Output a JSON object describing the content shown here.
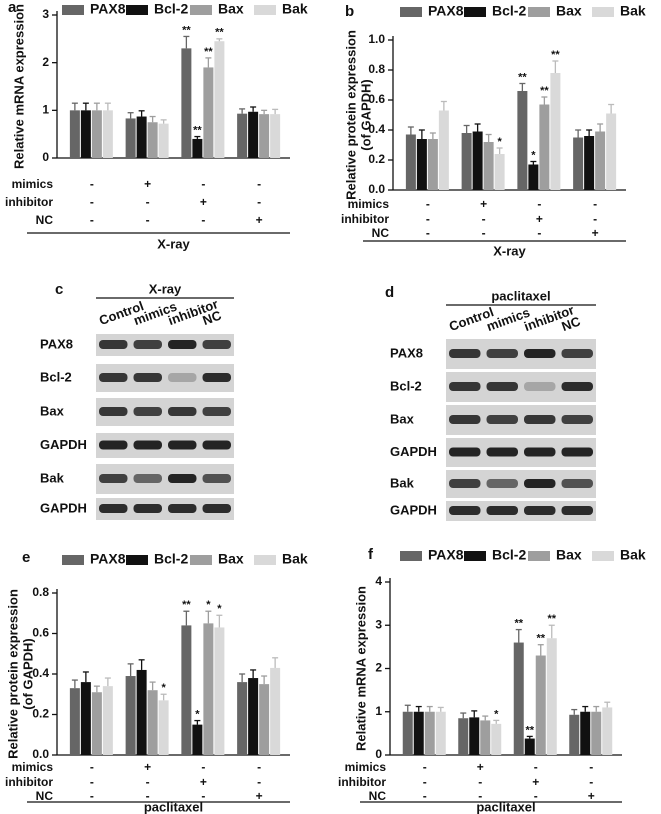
{
  "chart_data": [
    {
      "type": "bar",
      "panel": "a",
      "ylabel": [
        "Relative mRNA expression"
      ],
      "ylim": [
        0,
        3
      ],
      "yticks": [
        0,
        1,
        2,
        3
      ],
      "series": [
        {
          "name": "PAX8",
          "color": "#666666",
          "values": [
            1.0,
            0.83,
            2.3,
            0.93
          ],
          "errors": [
            0.15,
            0.12,
            0.25,
            0.1
          ],
          "stars": [
            null,
            null,
            "**",
            null
          ]
        },
        {
          "name": "Bcl-2",
          "color": "#111111",
          "values": [
            1.0,
            0.87,
            0.4,
            0.97
          ],
          "errors": [
            0.15,
            0.12,
            0.05,
            0.1
          ],
          "stars": [
            null,
            null,
            "**",
            null
          ]
        },
        {
          "name": "Bax",
          "color": "#9e9e9e",
          "values": [
            1.0,
            0.75,
            1.9,
            0.92
          ],
          "errors": [
            0.15,
            0.12,
            0.2,
            0.08
          ],
          "stars": [
            null,
            null,
            "**",
            null
          ]
        },
        {
          "name": "Bak",
          "color": "#d9d9d9",
          "values": [
            1.0,
            0.72,
            2.45,
            0.92
          ],
          "errors": [
            0.15,
            0.08,
            0.05,
            0.1
          ],
          "stars": [
            null,
            null,
            "**",
            null
          ]
        }
      ],
      "treatments": [
        {
          "label": "mimics",
          "marks": [
            "-",
            "+",
            "-",
            "-"
          ]
        },
        {
          "label": "inhibitor",
          "marks": [
            "-",
            "-",
            "+",
            "-"
          ]
        },
        {
          "label": "NC",
          "marks": [
            "-",
            "-",
            "-",
            "+"
          ]
        }
      ],
      "xlabel": "X-ray"
    },
    {
      "type": "bar",
      "panel": "b",
      "ylabel": [
        "Relative protein expression",
        "(of GAPDH)"
      ],
      "ylim": [
        0,
        1
      ],
      "yticks": [
        {
          "value": 0,
          "label": "0.0"
        },
        0.2,
        0.4,
        0.6,
        0.8,
        {
          "value": 1,
          "label": "1.0"
        }
      ],
      "series": [
        {
          "name": "PAX8",
          "color": "#666666",
          "values": [
            0.37,
            0.38,
            0.66,
            0.35
          ],
          "errors": [
            0.05,
            0.05,
            0.05,
            0.05
          ],
          "stars": [
            null,
            null,
            "**",
            null
          ]
        },
        {
          "name": "Bcl-2",
          "color": "#111111",
          "values": [
            0.34,
            0.39,
            0.17,
            0.36
          ],
          "errors": [
            0.06,
            0.05,
            0.02,
            0.04
          ],
          "stars": [
            null,
            null,
            "*",
            null
          ]
        },
        {
          "name": "Bax",
          "color": "#9e9e9e",
          "values": [
            0.34,
            0.32,
            0.57,
            0.39
          ],
          "errors": [
            0.04,
            0.05,
            0.05,
            0.05
          ],
          "stars": [
            null,
            null,
            "**",
            null
          ]
        },
        {
          "name": "Bak",
          "color": "#d9d9d9",
          "values": [
            0.53,
            0.24,
            0.78,
            0.51
          ],
          "errors": [
            0.06,
            0.04,
            0.08,
            0.06
          ],
          "stars": [
            null,
            "*",
            "**",
            null
          ]
        }
      ],
      "treatments": [
        {
          "label": "mimics",
          "marks": [
            "-",
            "+",
            "-",
            "-"
          ]
        },
        {
          "label": "inhibitor",
          "marks": [
            "-",
            "-",
            "+",
            "-"
          ]
        },
        {
          "label": "NC",
          "marks": [
            "-",
            "-",
            "-",
            "+"
          ]
        }
      ],
      "xlabel": "X-ray"
    },
    {
      "type": "bar",
      "panel": "e",
      "ylabel": [
        "Relative protein expression",
        "(of GAPDH)"
      ],
      "ylim": [
        0,
        0.8
      ],
      "yticks": [
        {
          "value": 0,
          "label": "0.0"
        },
        0.2,
        0.4,
        0.6,
        0.8
      ],
      "series": [
        {
          "name": "PAX8",
          "color": "#666666",
          "values": [
            0.33,
            0.39,
            0.64,
            0.36
          ],
          "errors": [
            0.04,
            0.06,
            0.07,
            0.04
          ],
          "stars": [
            null,
            null,
            "**",
            null
          ]
        },
        {
          "name": "Bcl-2",
          "color": "#111111",
          "values": [
            0.36,
            0.42,
            0.15,
            0.38
          ],
          "errors": [
            0.05,
            0.05,
            0.02,
            0.04
          ],
          "stars": [
            null,
            null,
            "*",
            null
          ]
        },
        {
          "name": "Bax",
          "color": "#9e9e9e",
          "values": [
            0.31,
            0.32,
            0.65,
            0.35
          ],
          "errors": [
            0.03,
            0.04,
            0.06,
            0.04
          ],
          "stars": [
            null,
            null,
            "*",
            null
          ]
        },
        {
          "name": "Bak",
          "color": "#d9d9d9",
          "values": [
            0.34,
            0.27,
            0.63,
            0.43
          ],
          "errors": [
            0.04,
            0.03,
            0.06,
            0.05
          ],
          "stars": [
            null,
            "*",
            "*",
            null
          ]
        }
      ],
      "treatments": [
        {
          "label": "mimics",
          "marks": [
            "-",
            "+",
            "-",
            "-"
          ]
        },
        {
          "label": "inhibitor",
          "marks": [
            "-",
            "-",
            "+",
            "-"
          ]
        },
        {
          "label": "NC",
          "marks": [
            "-",
            "-",
            "-",
            "+"
          ]
        }
      ],
      "xlabel": "paclitaxel"
    },
    {
      "type": "bar",
      "panel": "f",
      "ylabel": [
        "Relative mRNA expression"
      ],
      "ylim": [
        0,
        4
      ],
      "yticks": [
        0,
        1,
        2,
        3,
        4
      ],
      "series": [
        {
          "name": "PAX8",
          "color": "#666666",
          "values": [
            1.0,
            0.85,
            2.6,
            0.93
          ],
          "errors": [
            0.15,
            0.12,
            0.3,
            0.12
          ],
          "stars": [
            null,
            null,
            "**",
            null
          ]
        },
        {
          "name": "Bcl-2",
          "color": "#111111",
          "values": [
            1.0,
            0.87,
            0.38,
            1.0
          ],
          "errors": [
            0.12,
            0.15,
            0.05,
            0.12
          ],
          "stars": [
            null,
            null,
            "**",
            null
          ]
        },
        {
          "name": "Bax",
          "color": "#9e9e9e",
          "values": [
            1.0,
            0.8,
            2.3,
            1.0
          ],
          "errors": [
            0.12,
            0.1,
            0.25,
            0.12
          ],
          "stars": [
            null,
            null,
            "**",
            null
          ]
        },
        {
          "name": "Bak",
          "color": "#d9d9d9",
          "values": [
            1.0,
            0.72,
            2.7,
            1.1
          ],
          "errors": [
            0.1,
            0.08,
            0.3,
            0.12
          ],
          "stars": [
            null,
            "*",
            "**",
            null
          ]
        }
      ],
      "treatments": [
        {
          "label": "mimics",
          "marks": [
            "-",
            "+",
            "-",
            "-"
          ]
        },
        {
          "label": "inhibitor",
          "marks": [
            "-",
            "-",
            "+",
            "-"
          ]
        },
        {
          "label": "NC",
          "marks": [
            "-",
            "-",
            "-",
            "+"
          ]
        }
      ],
      "xlabel": "paclitaxel"
    }
  ],
  "blots": [
    {
      "panel": "c",
      "treatment": "X-ray",
      "lanes": [
        "Control",
        "mimics",
        "inhibitor",
        "NC"
      ],
      "rows": [
        "PAX8",
        "Bcl-2",
        "Bax",
        "GAPDH",
        "Bak",
        "GAPDH"
      ]
    },
    {
      "panel": "d",
      "treatment": "paclitaxel",
      "lanes": [
        "Control",
        "mimics",
        "inhibitor",
        "NC"
      ],
      "rows": [
        "PAX8",
        "Bcl-2",
        "Bax",
        "GAPDH",
        "Bak",
        "GAPDH"
      ]
    }
  ]
}
